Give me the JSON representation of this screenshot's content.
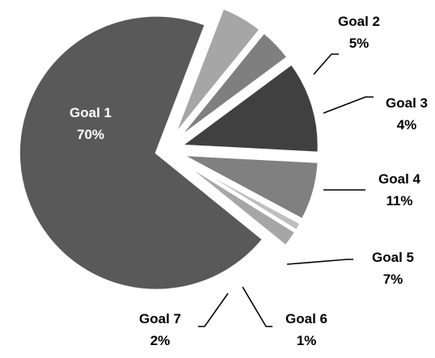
{
  "chart_data": {
    "type": "pie",
    "exploded": true,
    "categories": [
      "Goal 1",
      "Goal 2",
      "Goal 3",
      "Goal 4",
      "Goal 5",
      "Goal 6",
      "Goal 7"
    ],
    "values": [
      70,
      5,
      4,
      11,
      7,
      1,
      2
    ],
    "value_labels": [
      "70%",
      "5%",
      "4%",
      "11%",
      "7%",
      "1%",
      "2%"
    ],
    "colors": [
      "#595959",
      "#a6a6a6",
      "#7f7f7f",
      "#404040",
      "#808080",
      "#bfbfbf",
      "#a6a6a6"
    ],
    "label_colors": [
      "#ffffff",
      "#000000",
      "#000000",
      "#000000",
      "#000000",
      "#000000",
      "#000000"
    ],
    "title": "",
    "legend": "none"
  }
}
